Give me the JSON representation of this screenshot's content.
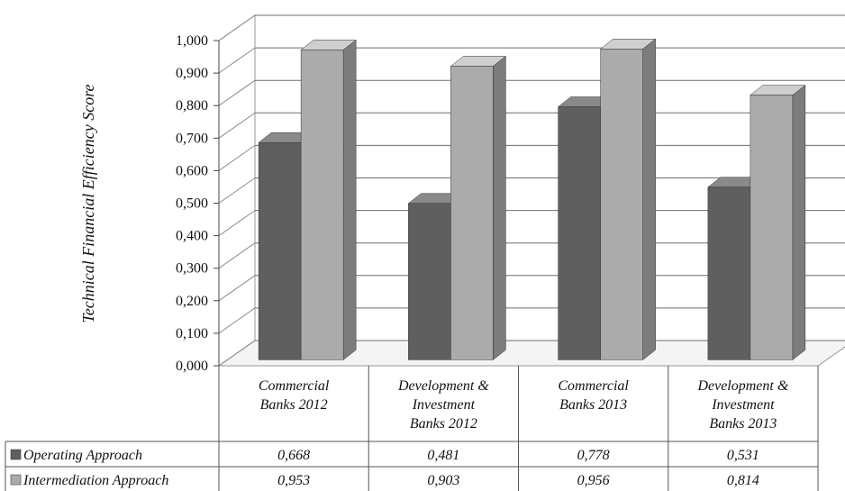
{
  "chart_data": {
    "type": "bar",
    "title": "",
    "ylabel": "Technical Financial Efficiency Score",
    "xlabel": "",
    "ylim": [
      0,
      1
    ],
    "ytick_step": 0.1,
    "ytick_labels": [
      "0,000",
      "0,100",
      "0,200",
      "0,300",
      "0,400",
      "0,500",
      "0,600",
      "0,700",
      "0,800",
      "0,900",
      "1,000"
    ],
    "grid": true,
    "categories": [
      [
        "Commercial",
        "Banks 2012"
      ],
      [
        "Development &",
        "Investment",
        "Banks 2012"
      ],
      [
        "Commercial",
        "Banks 2013"
      ],
      [
        "Development &",
        "Investment",
        "Banks 2013"
      ]
    ],
    "series": [
      {
        "name": "Operating Approach",
        "values": [
          0.668,
          0.481,
          0.778,
          0.531
        ],
        "labels": [
          "0,668",
          "0,481",
          "0,778",
          "0,531"
        ],
        "color": "#5f5f5f",
        "side_color": "#3f3f3f",
        "top_color": "#8a8a8a"
      },
      {
        "name": "Intermediation Approach",
        "values": [
          0.953,
          0.903,
          0.956,
          0.814
        ],
        "labels": [
          "0,953",
          "0,903",
          "0,956",
          "0,814"
        ],
        "color": "#ababab",
        "side_color": "#7c7c7c",
        "top_color": "#cfcfcf"
      }
    ],
    "legend": "data-table"
  }
}
